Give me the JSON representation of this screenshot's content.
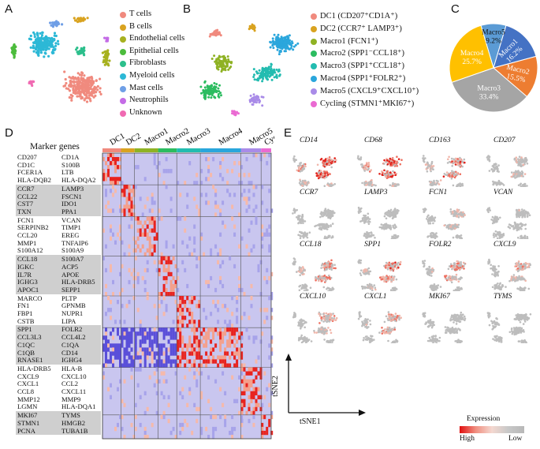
{
  "panels": {
    "A": "A",
    "B": "B",
    "C": "C",
    "D": "D",
    "E": "E"
  },
  "panelA": {
    "legend": [
      {
        "label": "T cells",
        "color": "#f08a7e"
      },
      {
        "label": "B cells",
        "color": "#d9a320"
      },
      {
        "label": "Endothelial cells",
        "color": "#a7b11f"
      },
      {
        "label": "Epithelial cells",
        "color": "#4cbc3c"
      },
      {
        "label": "Fibroblasts",
        "color": "#2cbf8c"
      },
      {
        "label": "Myeloid cells",
        "color": "#2cb8d6"
      },
      {
        "label": "Mast cells",
        "color": "#6f9fe6"
      },
      {
        "label": "Neutrophils",
        "color": "#c46ce6"
      },
      {
        "label": "Unknown",
        "color": "#f06ab2"
      }
    ]
  },
  "panelB": {
    "legend": [
      {
        "label": "DC1 (CD207⁺CD1A⁺)",
        "color": "#f08a7e"
      },
      {
        "label": "DC2 (CCR7⁺ LAMP3⁺)",
        "color": "#d9a320"
      },
      {
        "label": "Macro1 (FCN1⁺)",
        "color": "#8fb224"
      },
      {
        "label": "Macro2 (SPP1⁻CCL18⁺)",
        "color": "#2cbc60"
      },
      {
        "label": "Macro3 (SPP1⁺CCL18⁺)",
        "color": "#23bcb0"
      },
      {
        "label": "Macro4 (SPP1⁺FOLR2⁺)",
        "color": "#2aa6dc"
      },
      {
        "label": "Macro5 (CXCL9⁺CXCL10⁺)",
        "color": "#a98be8"
      },
      {
        "label": "Cycling (STMN1⁺MKI67⁺)",
        "color": "#ea6ad2"
      }
    ]
  },
  "chart_data": {
    "type": "pie",
    "categories": [
      "Macro1",
      "Macro2",
      "Macro3",
      "Macro4",
      "Macro5"
    ],
    "values": [
      16.2,
      15.5,
      33.4,
      25.7,
      9.2
    ],
    "value_labels": [
      "16.2%",
      "15.5%",
      "33.4%",
      "25.7%",
      "9.2%"
    ],
    "colors": [
      "#4472c4",
      "#ed7d31",
      "#a5a5a5",
      "#ffc000",
      "#5b9bd5"
    ]
  },
  "panelD": {
    "title": "Marker genes",
    "clusters": [
      {
        "name": "DC1",
        "color": "#f08a7e",
        "frac": 0.11
      },
      {
        "name": "DC2",
        "color": "#d9a320",
        "frac": 0.08
      },
      {
        "name": "Macro1",
        "color": "#8fb224",
        "frac": 0.14
      },
      {
        "name": "Macro2",
        "color": "#2cbc60",
        "frac": 0.11
      },
      {
        "name": "Macro3",
        "color": "#23bcb0",
        "frac": 0.14
      },
      {
        "name": "Macro4",
        "color": "#2aa6dc",
        "frac": 0.24
      },
      {
        "name": "Macro5",
        "color": "#a98be8",
        "frac": 0.12
      },
      {
        "name": "Cycling",
        "color": "#ea6ad2",
        "frac": 0.06
      }
    ],
    "gene_groups": [
      {
        "rows": [
          [
            "CD207",
            "CD1A"
          ],
          [
            "CD1C",
            "S100B"
          ],
          [
            "FCER1A",
            "LTB"
          ],
          [
            "HLA-DQB2",
            "HLA-DQA2"
          ]
        ],
        "shaded": false
      },
      {
        "rows": [
          [
            "CCR7",
            "LAMP3"
          ],
          [
            "CCL22",
            "FSCN1"
          ],
          [
            "CST7",
            "IDO1"
          ],
          [
            "TXN",
            "PPA1"
          ]
        ],
        "shaded": true
      },
      {
        "rows": [
          [
            "FCN1",
            "VCAN"
          ],
          [
            "SERPINB2",
            "TIMP1"
          ],
          [
            "CCL20",
            "EREG"
          ],
          [
            "MMP1",
            "TNFAIP6"
          ],
          [
            "S100A12",
            "S100A9"
          ]
        ],
        "shaded": false
      },
      {
        "rows": [
          [
            "CCL18",
            "S100A7"
          ],
          [
            "IGKC",
            "ACP5"
          ],
          [
            "IL7R",
            "APOE"
          ],
          [
            "IGHG3",
            "HLA-DRB5"
          ],
          [
            "APOC1",
            "SEPP1"
          ]
        ],
        "shaded": true
      },
      {
        "rows": [
          [
            "MARCO",
            "PLTP"
          ],
          [
            "FN1",
            "GPNMB"
          ],
          [
            "FBP1",
            "NUPR1"
          ],
          [
            "CSTB",
            "LIPA"
          ]
        ],
        "shaded": false
      },
      {
        "rows": [
          [
            "SPP1",
            "FOLR2"
          ],
          [
            "CCL3L3",
            "CCL4L2"
          ],
          [
            "C1QC",
            "C1QA"
          ],
          [
            "C1QB",
            "CD14"
          ],
          [
            "RNASE1",
            "IGHG4"
          ]
        ],
        "shaded": true
      },
      {
        "rows": [
          [
            "HLA-DRB5",
            "HLA-B"
          ],
          [
            "CXCL9",
            "CXCL10"
          ],
          [
            "CXCL1",
            "CCL2"
          ],
          [
            "CCL8",
            "CXCL11"
          ],
          [
            "MMP12",
            "MMP9"
          ],
          [
            "LGMN",
            "HLA-DQA1"
          ]
        ],
        "shaded": false
      },
      {
        "rows": [
          [
            "MKI67",
            "TYMS"
          ],
          [
            "STMN1",
            "HMGB2"
          ],
          [
            "PCNA",
            "TUBA1B"
          ]
        ],
        "shaded": true
      }
    ]
  },
  "panelE": {
    "genes": [
      "CD14",
      "CD68",
      "CD163",
      "CD207",
      "CCR7",
      "LAMP3",
      "FCN1",
      "VCAN",
      "CCL18",
      "SPP1",
      "FOLR2",
      "CXCL9",
      "CXCL10",
      "CXCL1",
      "MKI67",
      "TYMS"
    ],
    "intensity": [
      0.85,
      0.8,
      0.6,
      0.25,
      0.15,
      0.15,
      0.3,
      0.2,
      0.5,
      0.55,
      0.4,
      0.35,
      0.35,
      0.4,
      0.05,
      0.08
    ],
    "axis_x": "tSNE1",
    "axis_y": "tSNE2",
    "legend_title": "Expression",
    "legend_high": "High",
    "legend_low": "Low"
  }
}
